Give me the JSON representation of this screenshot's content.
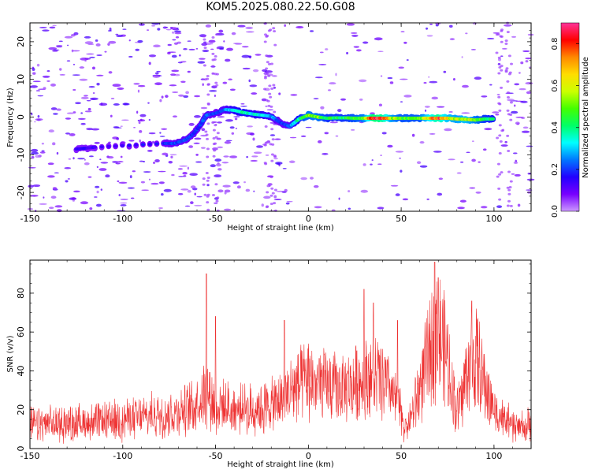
{
  "chart_data": [
    {
      "type": "heatmap",
      "title": "KOM5.2025.080.22.50.G08",
      "xlabel": "Height of straight line (km)",
      "ylabel": "Frequency (Hz)",
      "xlim": [
        -150,
        120
      ],
      "ylim": [
        -25,
        25
      ],
      "x_ticks": [
        "-150",
        "-100",
        "-50",
        "0",
        "50",
        "100"
      ],
      "y_ticks": [
        "20",
        "10",
        "0",
        "-10",
        "-20"
      ],
      "colorbar": {
        "label": "Normalized spectral amplitude",
        "range": [
          0,
          0.9
        ],
        "ticks": [
          "0.0",
          "0.2",
          "0.4",
          "0.6",
          "0.8"
        ],
        "colormap": [
          "#cc99ff",
          "#7700ff",
          "#2200ff",
          "#0077ff",
          "#00ffff",
          "#00ff66",
          "#44ff00",
          "#ccff00",
          "#ffdd00",
          "#ff8800",
          "#ff0000",
          "#ff3399"
        ]
      },
      "trace": [
        {
          "x": -125,
          "f": -8.5,
          "a": 0.15
        },
        {
          "x": -115,
          "f": -8.0,
          "a": 0.15
        },
        {
          "x": -78,
          "f": -7.0,
          "a": 0.18
        },
        {
          "x": -72,
          "f": -7.0,
          "a": 0.22
        },
        {
          "x": -66,
          "f": -6.0,
          "a": 0.22
        },
        {
          "x": -62,
          "f": -4.5,
          "a": 0.2
        },
        {
          "x": -58,
          "f": -2.0,
          "a": 0.2
        },
        {
          "x": -55,
          "f": 0.5,
          "a": 0.25
        },
        {
          "x": -50,
          "f": 1.0,
          "a": 0.2
        },
        {
          "x": -45,
          "f": 2.0,
          "a": 0.25
        },
        {
          "x": -40,
          "f": 1.8,
          "a": 0.35
        },
        {
          "x": -35,
          "f": 1.2,
          "a": 0.4
        },
        {
          "x": -30,
          "f": 0.8,
          "a": 0.35
        },
        {
          "x": -25,
          "f": 0.5,
          "a": 0.35
        },
        {
          "x": -20,
          "f": 0.2,
          "a": 0.3
        },
        {
          "x": -15,
          "f": -1.5,
          "a": 0.2
        },
        {
          "x": -10,
          "f": -2.5,
          "a": 0.25
        },
        {
          "x": -5,
          "f": -0.5,
          "a": 0.4
        },
        {
          "x": 0,
          "f": 0.5,
          "a": 0.55
        },
        {
          "x": 5,
          "f": 0.0,
          "a": 0.55
        },
        {
          "x": 10,
          "f": -0.3,
          "a": 0.45
        },
        {
          "x": 15,
          "f": -0.2,
          "a": 0.45
        },
        {
          "x": 20,
          "f": -0.2,
          "a": 0.45
        },
        {
          "x": 25,
          "f": -0.3,
          "a": 0.5
        },
        {
          "x": 30,
          "f": -0.3,
          "a": 0.55
        },
        {
          "x": 35,
          "f": -0.3,
          "a": 0.9
        },
        {
          "x": 40,
          "f": -0.3,
          "a": 0.85
        },
        {
          "x": 45,
          "f": -0.3,
          "a": 0.6
        },
        {
          "x": 50,
          "f": -0.3,
          "a": 0.5
        },
        {
          "x": 55,
          "f": -0.3,
          "a": 0.5
        },
        {
          "x": 60,
          "f": -0.3,
          "a": 0.5
        },
        {
          "x": 65,
          "f": -0.3,
          "a": 0.7
        },
        {
          "x": 70,
          "f": -0.3,
          "a": 0.85
        },
        {
          "x": 75,
          "f": -0.3,
          "a": 0.65
        },
        {
          "x": 80,
          "f": -0.5,
          "a": 0.6
        },
        {
          "x": 85,
          "f": -0.6,
          "a": 0.65
        },
        {
          "x": 90,
          "f": -0.8,
          "a": 0.55
        },
        {
          "x": 95,
          "f": -0.5,
          "a": 0.45
        },
        {
          "x": 100,
          "f": -0.5,
          "a": 0.4
        }
      ]
    },
    {
      "type": "line",
      "xlabel": "Height of straight line (km)",
      "ylabel": "SNR (v/v)",
      "xlim": [
        -150,
        120
      ],
      "ylim": [
        0,
        97
      ],
      "x_ticks": [
        "-150",
        "-100",
        "-50",
        "0",
        "50",
        "100"
      ],
      "y_ticks": [
        "0",
        "20",
        "40",
        "60",
        "80"
      ],
      "line_color": "#ee3333",
      "envelope": {
        "x": [
          -150,
          -130,
          -110,
          -90,
          -75,
          -65,
          -60,
          -55,
          -50,
          -40,
          -30,
          -20,
          -15,
          -10,
          -5,
          0,
          5,
          10,
          15,
          20,
          25,
          30,
          35,
          40,
          45,
          50,
          52,
          55,
          58,
          62,
          65,
          68,
          70,
          72,
          75,
          78,
          80,
          83,
          85,
          88,
          90,
          93,
          95,
          100,
          105,
          110,
          115,
          120
        ],
        "y": [
          12,
          13,
          14,
          16,
          18,
          20,
          24,
          30,
          22,
          20,
          20,
          22,
          24,
          30,
          32,
          35,
          33,
          32,
          31,
          30,
          33,
          36,
          38,
          35,
          28,
          18,
          10,
          15,
          25,
          38,
          48,
          56,
          60,
          55,
          45,
          28,
          20,
          28,
          38,
          45,
          47,
          40,
          32,
          20,
          15,
          12,
          11,
          12
        ]
      },
      "peaks": [
        {
          "x": -55,
          "y": 90
        },
        {
          "x": -50,
          "y": 68
        },
        {
          "x": -13,
          "y": 66
        },
        {
          "x": 30,
          "y": 82
        },
        {
          "x": 35,
          "y": 75
        },
        {
          "x": 48,
          "y": 66
        },
        {
          "x": 68,
          "y": 96
        },
        {
          "x": 70,
          "y": 88
        },
        {
          "x": 88,
          "y": 76
        }
      ]
    }
  ]
}
